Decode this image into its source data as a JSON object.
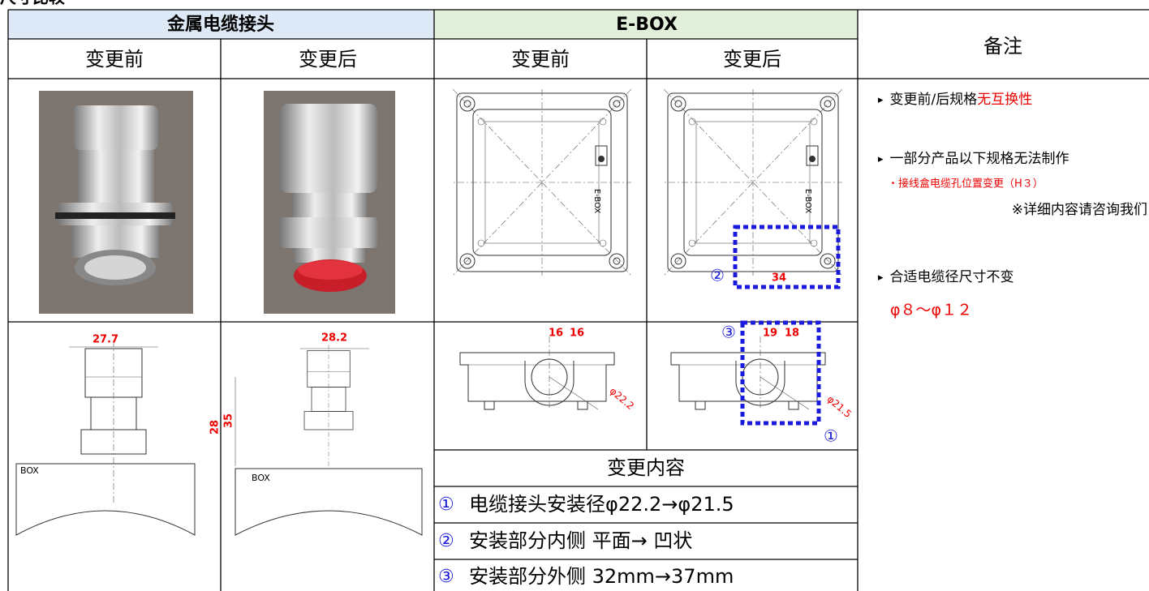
{
  "header": {
    "title": "尺寸比较"
  },
  "table": {
    "groups": [
      "金属电缆接头",
      "E-BOX",
      "备注"
    ],
    "subheaders": [
      "变更前",
      "变更后",
      "变更前",
      "变更后"
    ]
  },
  "drawings": {
    "connector_before": {
      "width": "27.7",
      "height": "28",
      "box": "BOX"
    },
    "connector_after": {
      "width": "28.2",
      "height": "35",
      "box": "BOX"
    },
    "ebox_before": {
      "label": "E-BOX",
      "spacing": [
        "16",
        "16"
      ],
      "diameter": "φ22.2"
    },
    "ebox_after": {
      "label": "E-BOX",
      "width": "34",
      "spacing": [
        "19",
        "18"
      ],
      "diameter": "φ21.5",
      "markers": [
        "②",
        "③",
        "①"
      ]
    }
  },
  "changes": {
    "title": "变更内容",
    "items": [
      {
        "marker": "①",
        "text": "电缆接头安装径φ22.2→φ21.5"
      },
      {
        "marker": "②",
        "text": "安装部分内侧 平面→ 凹状"
      },
      {
        "marker": "③",
        "text": "安装部分外侧 32mm→37mm"
      }
    ]
  },
  "notes": [
    {
      "bullet": "▸",
      "text": "变更前/后规格",
      "highlight": "无互换性"
    },
    {
      "bullet": "▸",
      "text": "一部分产品以下规格无法制作",
      "sub": "・接线盒电缆孔位置变更（H３）",
      "contact": "※详细内容请咨询我们"
    },
    {
      "bullet": "▸",
      "text": "合适电缆径尺寸不变",
      "sub": "φ８～φ１２"
    }
  ]
}
